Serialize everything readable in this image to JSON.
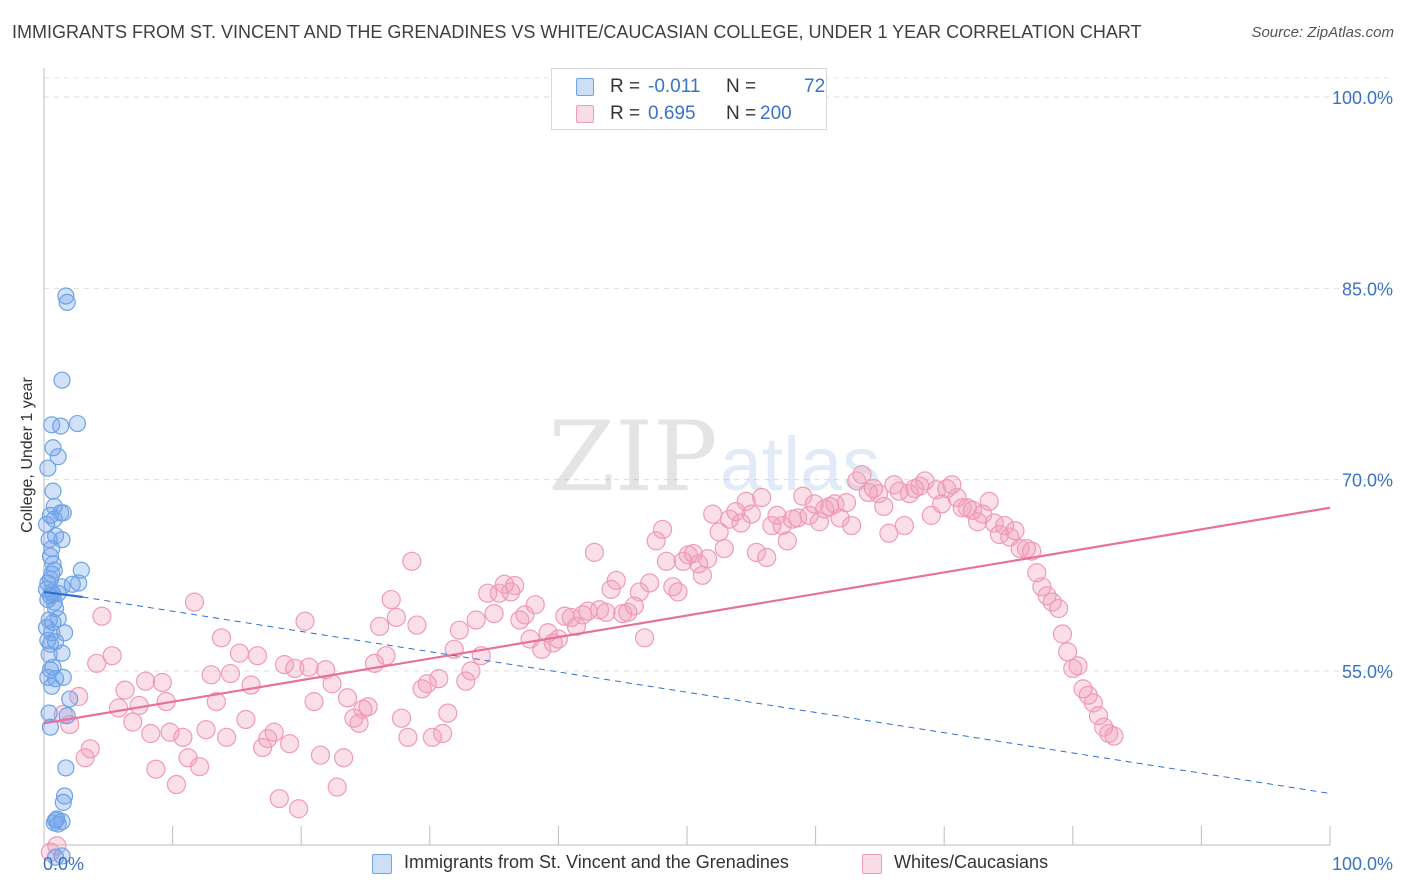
{
  "title": "IMMIGRANTS FROM ST. VINCENT AND THE GRENADINES VS WHITE/CAUCASIAN COLLEGE, UNDER 1 YEAR CORRELATION CHART",
  "source": "Source: ZipAtlas.com",
  "watermark": {
    "zip": "ZIP",
    "atlas": "atlas"
  },
  "stats": {
    "rows": [
      {
        "r_label": "R =",
        "r_value": "-0.011",
        "n_label": "N =",
        "n_value": "72",
        "color": "#6fa3e8"
      },
      {
        "r_label": "R =",
        "r_value": "0.695",
        "n_label": "N =",
        "n_value": "200",
        "color": "#f09ab6"
      }
    ]
  },
  "legend": {
    "items": [
      {
        "label": "Immigrants from St. Vincent and the Grenadines",
        "color": "#6fa3e8"
      },
      {
        "label": "Whites/Caucasians",
        "color": "#f09ab6"
      }
    ]
  },
  "chart_data": {
    "type": "scatter",
    "ylabel": "College, Under 1 year",
    "xlim": [
      0,
      100
    ],
    "ylim": [
      40,
      100
    ],
    "x_tick_labels": [
      "0.0%",
      "100.0%"
    ],
    "y_ticks": [
      55,
      70,
      85,
      100
    ],
    "y_tick_labels": [
      "55.0%",
      "70.0%",
      "85.0%",
      "100.0%"
    ],
    "grid": true,
    "colors": {
      "blue": "#6fa3e8",
      "blue_line": "#2f6fd0",
      "pink": "#f09ab6",
      "pink_line": "#e8709a",
      "tick_label": "#3a73c4"
    },
    "series": [
      {
        "name": "Immigrants from St. Vincent and the Grenadines",
        "color": "#6fa3e8",
        "trend": {
          "x": [
            0,
            3,
            100
          ],
          "y": [
            61.2,
            60.8,
            45.4
          ],
          "solid_until": 3
        },
        "points": [
          [
            1.7,
            84.4
          ],
          [
            1.8,
            83.9
          ],
          [
            1.4,
            77.8
          ],
          [
            2.6,
            74.4
          ],
          [
            0.6,
            74.3
          ],
          [
            1.3,
            74.2
          ],
          [
            0.7,
            72.5
          ],
          [
            1.1,
            71.8
          ],
          [
            0.3,
            70.9
          ],
          [
            0.7,
            69.1
          ],
          [
            0.8,
            67.9
          ],
          [
            1.3,
            67.4
          ],
          [
            1.5,
            67.4
          ],
          [
            0.5,
            67.2
          ],
          [
            0.8,
            66.9
          ],
          [
            0.2,
            66.5
          ],
          [
            0.9,
            65.6
          ],
          [
            0.4,
            65.3
          ],
          [
            1.4,
            65.3
          ],
          [
            0.6,
            64.6
          ],
          [
            0.5,
            64.0
          ],
          [
            0.7,
            63.4
          ],
          [
            0.8,
            62.9
          ],
          [
            2.9,
            62.9
          ],
          [
            0.6,
            62.6
          ],
          [
            0.5,
            62.2
          ],
          [
            0.3,
            61.9
          ],
          [
            2.2,
            61.8
          ],
          [
            2.7,
            61.9
          ],
          [
            1.4,
            61.6
          ],
          [
            0.2,
            61.4
          ],
          [
            0.6,
            61.2
          ],
          [
            1.1,
            61.1
          ],
          [
            0.7,
            61.0
          ],
          [
            0.5,
            60.9
          ],
          [
            0.3,
            60.6
          ],
          [
            0.8,
            60.4
          ],
          [
            0.9,
            59.9
          ],
          [
            0.4,
            59.0
          ],
          [
            1.1,
            59.1
          ],
          [
            0.7,
            58.8
          ],
          [
            0.2,
            58.4
          ],
          [
            1.6,
            58.0
          ],
          [
            0.6,
            58.0
          ],
          [
            0.3,
            57.4
          ],
          [
            0.9,
            57.3
          ],
          [
            0.5,
            57.1
          ],
          [
            1.4,
            56.4
          ],
          [
            0.4,
            56.3
          ],
          [
            0.7,
            55.3
          ],
          [
            0.5,
            55.1
          ],
          [
            0.3,
            54.5
          ],
          [
            1.5,
            54.5
          ],
          [
            0.9,
            54.4
          ],
          [
            0.6,
            53.8
          ],
          [
            2.0,
            52.8
          ],
          [
            0.4,
            51.7
          ],
          [
            1.8,
            51.5
          ],
          [
            0.5,
            50.6
          ],
          [
            1.7,
            47.4
          ],
          [
            1.6,
            45.2
          ],
          [
            1.5,
            44.7
          ],
          [
            1.0,
            43.4
          ],
          [
            0.9,
            43.3
          ],
          [
            1.4,
            43.2
          ],
          [
            1.1,
            43.0
          ],
          [
            0.8,
            43.1
          ],
          [
            1.4,
            40.5
          ],
          [
            0.9,
            40.4
          ]
        ]
      },
      {
        "name": "Whites/Caucasians",
        "color": "#f09ab6",
        "trend": {
          "x": [
            0,
            100
          ],
          "y": [
            50.9,
            67.8
          ]
        },
        "points": [
          [
            0.5,
            40.8
          ],
          [
            1.0,
            41.3
          ],
          [
            1.5,
            51.6
          ],
          [
            2.0,
            50.8
          ],
          [
            2.7,
            53.0
          ],
          [
            3.2,
            48.2
          ],
          [
            3.6,
            48.9
          ],
          [
            4.1,
            55.6
          ],
          [
            4.5,
            59.3
          ],
          [
            5.3,
            56.2
          ],
          [
            5.8,
            52.1
          ],
          [
            6.3,
            53.5
          ],
          [
            6.9,
            51.0
          ],
          [
            7.4,
            52.3
          ],
          [
            7.9,
            54.2
          ],
          [
            8.3,
            50.1
          ],
          [
            8.7,
            47.3
          ],
          [
            9.2,
            54.1
          ],
          [
            9.5,
            52.6
          ],
          [
            9.8,
            50.2
          ],
          [
            10.3,
            46.1
          ],
          [
            10.8,
            49.8
          ],
          [
            11.2,
            48.2
          ],
          [
            11.7,
            60.4
          ],
          [
            12.1,
            47.5
          ],
          [
            12.6,
            50.4
          ],
          [
            13.0,
            54.7
          ],
          [
            13.4,
            52.6
          ],
          [
            13.8,
            57.6
          ],
          [
            14.2,
            49.8
          ],
          [
            14.5,
            54.8
          ],
          [
            15.2,
            56.4
          ],
          [
            15.7,
            51.2
          ],
          [
            16.1,
            53.9
          ],
          [
            16.6,
            56.2
          ],
          [
            17.0,
            49.0
          ],
          [
            17.4,
            49.7
          ],
          [
            17.9,
            50.2
          ],
          [
            18.3,
            45.0
          ],
          [
            18.7,
            55.5
          ],
          [
            19.1,
            49.3
          ],
          [
            19.5,
            55.2
          ],
          [
            19.8,
            44.2
          ],
          [
            20.3,
            58.9
          ],
          [
            20.6,
            55.3
          ],
          [
            21.0,
            52.6
          ],
          [
            21.5,
            48.4
          ],
          [
            21.9,
            55.1
          ],
          [
            22.4,
            54.0
          ],
          [
            22.8,
            45.9
          ],
          [
            23.3,
            48.2
          ],
          [
            23.6,
            52.9
          ],
          [
            24.1,
            51.3
          ],
          [
            24.5,
            50.9
          ],
          [
            24.8,
            52.0
          ],
          [
            25.2,
            52.2
          ],
          [
            25.7,
            55.6
          ],
          [
            26.1,
            58.5
          ],
          [
            26.6,
            56.2
          ],
          [
            27.0,
            60.6
          ],
          [
            27.4,
            59.2
          ],
          [
            27.8,
            51.3
          ],
          [
            28.3,
            49.8
          ],
          [
            28.6,
            63.6
          ],
          [
            29.0,
            58.6
          ],
          [
            29.4,
            53.6
          ],
          [
            29.8,
            54.0
          ],
          [
            30.2,
            49.8
          ],
          [
            30.7,
            54.4
          ],
          [
            31.0,
            50.1
          ],
          [
            31.4,
            51.7
          ],
          [
            31.9,
            56.7
          ],
          [
            32.3,
            58.2
          ],
          [
            32.8,
            54.2
          ],
          [
            33.2,
            55.0
          ],
          [
            33.6,
            59.0
          ],
          [
            34.0,
            56.2
          ],
          [
            34.5,
            61.1
          ],
          [
            35.0,
            59.5
          ],
          [
            35.4,
            61.1
          ],
          [
            35.8,
            61.8
          ],
          [
            36.3,
            61.2
          ],
          [
            36.6,
            61.7
          ],
          [
            37.0,
            59.0
          ],
          [
            37.4,
            59.4
          ],
          [
            37.8,
            57.5
          ],
          [
            38.2,
            60.2
          ],
          [
            38.7,
            56.7
          ],
          [
            39.2,
            58.0
          ],
          [
            39.6,
            57.2
          ],
          [
            40.0,
            57.5
          ],
          [
            40.5,
            59.3
          ],
          [
            41.0,
            59.2
          ],
          [
            41.4,
            58.5
          ],
          [
            41.9,
            59.4
          ],
          [
            42.3,
            59.7
          ],
          [
            42.8,
            64.3
          ],
          [
            43.2,
            59.8
          ],
          [
            43.7,
            59.6
          ],
          [
            44.1,
            61.4
          ],
          [
            44.5,
            62.1
          ],
          [
            45.0,
            59.5
          ],
          [
            45.4,
            59.6
          ],
          [
            45.9,
            60.1
          ],
          [
            46.3,
            61.2
          ],
          [
            46.7,
            57.6
          ],
          [
            47.1,
            61.9
          ],
          [
            47.6,
            65.2
          ],
          [
            48.1,
            66.1
          ],
          [
            48.4,
            63.6
          ],
          [
            48.9,
            61.6
          ],
          [
            49.3,
            61.2
          ],
          [
            49.7,
            63.6
          ],
          [
            50.1,
            64.1
          ],
          [
            50.5,
            64.2
          ],
          [
            50.9,
            63.4
          ],
          [
            51.2,
            62.5
          ],
          [
            51.6,
            63.8
          ],
          [
            52.0,
            67.3
          ],
          [
            52.5,
            65.9
          ],
          [
            52.9,
            64.6
          ],
          [
            53.3,
            66.9
          ],
          [
            53.8,
            67.5
          ],
          [
            54.2,
            66.6
          ],
          [
            54.6,
            68.3
          ],
          [
            55.0,
            67.3
          ],
          [
            55.4,
            64.3
          ],
          [
            55.8,
            68.6
          ],
          [
            56.2,
            63.9
          ],
          [
            56.6,
            66.4
          ],
          [
            57.0,
            67.2
          ],
          [
            57.4,
            66.4
          ],
          [
            57.8,
            65.2
          ],
          [
            58.2,
            66.9
          ],
          [
            58.6,
            67.0
          ],
          [
            59.0,
            68.7
          ],
          [
            59.5,
            67.2
          ],
          [
            59.9,
            68.1
          ],
          [
            60.3,
            66.7
          ],
          [
            60.7,
            67.7
          ],
          [
            61.1,
            67.9
          ],
          [
            61.5,
            68.1
          ],
          [
            61.9,
            67.0
          ],
          [
            62.4,
            68.2
          ],
          [
            62.8,
            66.4
          ],
          [
            63.2,
            69.9
          ],
          [
            63.6,
            70.4
          ],
          [
            64.1,
            69.0
          ],
          [
            64.5,
            69.3
          ],
          [
            64.9,
            68.9
          ],
          [
            65.3,
            67.9
          ],
          [
            65.7,
            65.8
          ],
          [
            66.1,
            69.6
          ],
          [
            66.5,
            69.1
          ],
          [
            66.9,
            66.4
          ],
          [
            67.3,
            68.9
          ],
          [
            67.7,
            69.3
          ],
          [
            68.1,
            69.5
          ],
          [
            68.5,
            69.9
          ],
          [
            69.0,
            67.2
          ],
          [
            69.4,
            69.2
          ],
          [
            69.8,
            68.1
          ],
          [
            70.2,
            69.3
          ],
          [
            70.6,
            69.6
          ],
          [
            71.0,
            68.6
          ],
          [
            71.4,
            67.8
          ],
          [
            71.8,
            67.8
          ],
          [
            72.2,
            67.6
          ],
          [
            72.6,
            66.7
          ],
          [
            73.0,
            67.3
          ],
          [
            73.5,
            68.3
          ],
          [
            73.9,
            66.6
          ],
          [
            74.3,
            65.7
          ],
          [
            74.7,
            66.4
          ],
          [
            75.1,
            65.5
          ],
          [
            75.5,
            66.0
          ],
          [
            75.9,
            64.6
          ],
          [
            76.4,
            64.6
          ],
          [
            76.8,
            64.4
          ],
          [
            77.2,
            62.7
          ],
          [
            77.6,
            61.6
          ],
          [
            78.0,
            60.9
          ],
          [
            78.4,
            60.4
          ],
          [
            78.9,
            59.9
          ],
          [
            79.2,
            57.9
          ],
          [
            79.6,
            56.5
          ],
          [
            80.0,
            55.2
          ],
          [
            80.4,
            55.4
          ],
          [
            80.8,
            53.6
          ],
          [
            81.2,
            53.1
          ],
          [
            81.6,
            52.5
          ],
          [
            82.0,
            51.5
          ],
          [
            82.4,
            50.6
          ],
          [
            82.8,
            50.1
          ],
          [
            83.2,
            49.9
          ]
        ]
      }
    ]
  }
}
